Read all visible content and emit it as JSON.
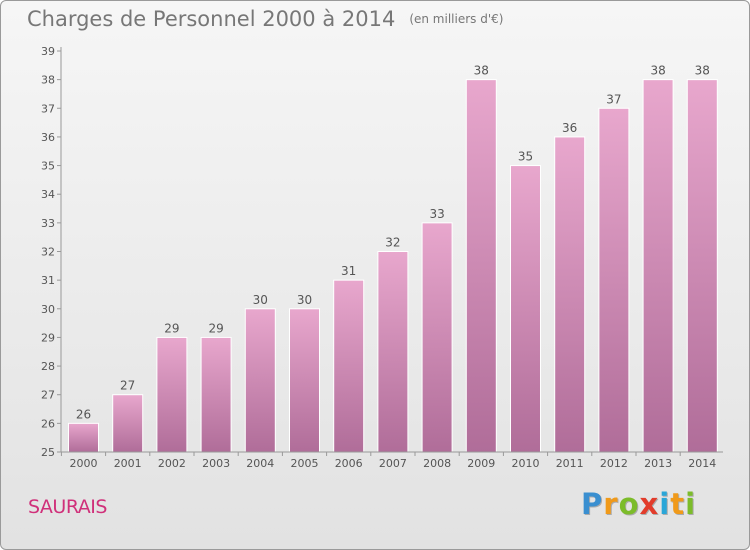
{
  "header": {
    "title": "Charges de Personnel 2000 à 2014",
    "subtitle": "(en milliers d'€)"
  },
  "footer": {
    "commune": "SAURAIS",
    "brand": "Proxiti",
    "brand_letters": [
      "P",
      "r",
      "o",
      "x",
      "i",
      "t",
      "i"
    ]
  },
  "colors": {
    "bar_top": "#e8a7cd",
    "bar_bottom": "#b06d99",
    "axis": "#999999",
    "text": "#555555",
    "commune": "#d0307a",
    "brand_letters": [
      "#3a8fd0",
      "#f09a1a",
      "#7cbc2a",
      "#e23c2b",
      "#2aa6d8",
      "#f09a1a",
      "#7cbc2a"
    ]
  },
  "chart_data": {
    "type": "bar",
    "title": "Charges de Personnel 2000 à 2014",
    "categories": [
      "2000",
      "2001",
      "2002",
      "2003",
      "2004",
      "2005",
      "2006",
      "2007",
      "2008",
      "2009",
      "2010",
      "2011",
      "2012",
      "2013",
      "2014"
    ],
    "values": [
      26,
      27,
      29,
      29,
      30,
      30,
      31,
      32,
      33,
      38,
      35,
      36,
      37,
      38,
      38
    ],
    "ylim": [
      25,
      39
    ],
    "yticks": [
      25,
      26,
      27,
      28,
      29,
      30,
      31,
      32,
      33,
      34,
      35,
      36,
      37,
      38,
      39
    ],
    "grid": false,
    "data_labels": true
  }
}
